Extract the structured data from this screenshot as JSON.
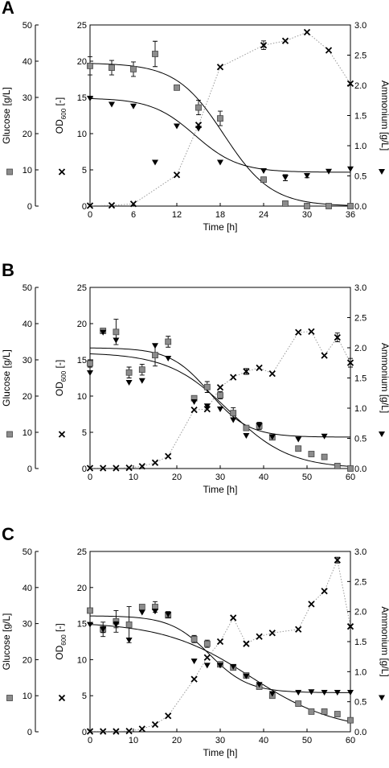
{
  "colors": {
    "glucose_fill": "#8c8c8c",
    "line": "#000000",
    "od_dotted": "#9a9a9a"
  },
  "icons": {
    "glucose": "square-marker-icon",
    "od": "cross-marker-icon",
    "ammonium": "triangle-down-marker-icon"
  },
  "axis_text": {
    "glucose": "Glucose [g/L]",
    "od_main": "OD",
    "od_sub": "600",
    "od_unit": " [-]",
    "ammonium": "Ammonium [g/L]",
    "time": "Time [h]"
  },
  "chart_data": [
    {
      "panel": "A",
      "type": "scatter",
      "xlabel": "Time [h]",
      "xlim": [
        0,
        36
      ],
      "xticks": [
        0,
        6,
        12,
        18,
        24,
        30,
        36
      ],
      "glucose_axis": {
        "label": "Glucose [g/L]",
        "lim": [
          0,
          50
        ],
        "ticks": [
          0,
          10,
          20,
          30,
          40,
          50
        ]
      },
      "od_axis": {
        "label": "OD600 [-]",
        "lim": [
          0,
          25
        ],
        "ticks": [
          0,
          5,
          10,
          15,
          20,
          25
        ]
      },
      "ammonium_axis": {
        "label": "Ammonium [g/L]",
        "lim": [
          0,
          3.0
        ],
        "ticks": [
          "0.0",
          "0.5",
          "1.0",
          "1.5",
          "2.0",
          "2.5",
          "3.0"
        ]
      },
      "series": [
        {
          "name": "Glucose [g/L]",
          "marker": "square",
          "axis": "glucose",
          "x": [
            0,
            3,
            6,
            9,
            12,
            15,
            18,
            24,
            27,
            30,
            33,
            36
          ],
          "y": [
            38.7,
            38.2,
            37.8,
            42.0,
            32.7,
            27.2,
            24.2,
            7.3,
            0.7,
            0.0,
            0.0,
            0.0
          ],
          "err": [
            2.5,
            2.0,
            2.0,
            3.5,
            0,
            2.0,
            2.0,
            0,
            0,
            0,
            0,
            0
          ]
        },
        {
          "name": "OD600 [-]",
          "marker": "cross",
          "axis": "od",
          "connected": true,
          "x": [
            0,
            3,
            6,
            12,
            15,
            18,
            24,
            27,
            30,
            33,
            36
          ],
          "y": [
            0.05,
            0.1,
            0.3,
            4.3,
            11.2,
            19.2,
            22.2,
            22.8,
            24.0,
            21.5,
            16.9
          ],
          "err": [
            0,
            0,
            0,
            0,
            0,
            0,
            0.6,
            0,
            0,
            0,
            0
          ]
        },
        {
          "name": "Ammonium [g/L]",
          "marker": "triangle-down",
          "axis": "ammonium",
          "x": [
            0,
            3,
            6,
            9,
            12,
            15,
            18,
            24,
            27,
            30,
            33,
            36
          ],
          "y": [
            1.78,
            1.68,
            1.65,
            0.72,
            1.32,
            1.28,
            0.72,
            0.58,
            0.47,
            0.5,
            0.57,
            0.61
          ],
          "err": [
            0,
            0,
            0,
            0,
            0,
            0,
            0,
            0,
            0.05,
            0.03,
            0,
            0
          ]
        }
      ],
      "fits": [
        {
          "axis": "glucose",
          "top": 39.5,
          "bottom": 0,
          "mid": 18.5,
          "slope": 3.3
        },
        {
          "axis": "ammonium",
          "top": 1.79,
          "bottom": 0.56,
          "mid": 14.5,
          "slope": 3.0
        }
      ]
    },
    {
      "panel": "B",
      "type": "scatter",
      "xlabel": "Time [h]",
      "xlim": [
        0,
        60
      ],
      "xticks": [
        0,
        10,
        20,
        30,
        40,
        50,
        60
      ],
      "glucose_axis": {
        "label": "Glucose [g/L]",
        "lim": [
          0,
          50
        ],
        "ticks": [
          0,
          10,
          20,
          30,
          40,
          50
        ]
      },
      "od_axis": {
        "label": "OD600 [-]",
        "lim": [
          0,
          25
        ],
        "ticks": [
          0,
          5,
          10,
          15,
          20,
          25
        ]
      },
      "ammonium_axis": {
        "label": "Ammonium [g/L]",
        "lim": [
          0,
          3.0
        ],
        "ticks": [
          "0.0",
          "0.5",
          "1.0",
          "1.5",
          "2.0",
          "2.5",
          "3.0"
        ]
      },
      "series": [
        {
          "name": "Glucose [g/L]",
          "marker": "square",
          "axis": "glucose",
          "x": [
            0,
            3,
            6,
            9,
            12,
            15,
            18,
            24,
            27,
            30,
            33,
            36,
            39,
            42,
            48,
            51,
            54,
            57,
            60
          ],
          "y": [
            29.0,
            38.0,
            37.7,
            26.5,
            27.3,
            31.3,
            35.0,
            19.4,
            22.5,
            20.2,
            15.3,
            11.2,
            11.8,
            8.6,
            5.5,
            4.0,
            3.2,
            0.7,
            0.0
          ],
          "err": [
            1.0,
            0,
            3.5,
            1.5,
            1.5,
            3.0,
            1.5,
            0,
            1.5,
            1.0,
            1.5,
            0,
            1.0,
            0,
            0,
            0,
            0,
            0,
            0
          ]
        },
        {
          "name": "OD600 [-]",
          "marker": "cross",
          "axis": "od",
          "connected": true,
          "x": [
            0,
            3,
            6,
            9,
            12,
            15,
            18,
            24,
            27,
            30,
            33,
            36,
            39,
            42,
            48,
            51,
            54,
            57,
            60
          ],
          "y": [
            0.05,
            0.05,
            0.05,
            0.1,
            0.3,
            0.8,
            1.7,
            8.1,
            8.2,
            11.2,
            12.6,
            13.4,
            13.9,
            13.1,
            18.8,
            18.9,
            15.6,
            18.1,
            14.6
          ],
          "err": [
            0,
            0,
            0,
            0,
            0,
            0,
            0,
            0,
            0,
            0,
            0,
            0.4,
            0,
            0,
            0,
            0,
            0,
            0.6,
            0.6
          ]
        },
        {
          "name": "Ammonium [g/L]",
          "marker": "triangle-down",
          "axis": "ammonium",
          "x": [
            0,
            3,
            6,
            9,
            12,
            15,
            18,
            24,
            27,
            30,
            33,
            36,
            39,
            42,
            48,
            54
          ],
          "y": [
            1.58,
            2.25,
            2.12,
            1.42,
            1.45,
            2.03,
            1.82,
            1.1,
            1.03,
            0.98,
            0.8,
            0.54,
            0.71,
            0.52,
            0.48,
            0.53
          ],
          "err": [
            0,
            0,
            0,
            0,
            0,
            0,
            0,
            0,
            0,
            0,
            0,
            0,
            0,
            0,
            0,
            0
          ]
        }
      ],
      "fits": [
        {
          "axis": "glucose",
          "top": 32.0,
          "bottom": 0,
          "mid": 32.0,
          "slope": 7.0
        },
        {
          "axis": "ammonium",
          "top": 2.0,
          "bottom": 0.52,
          "mid": 27.5,
          "slope": 4.5
        }
      ]
    },
    {
      "panel": "C",
      "type": "scatter",
      "xlabel": "Time [h]",
      "xlim": [
        0,
        60
      ],
      "xticks": [
        0,
        10,
        20,
        30,
        40,
        50,
        60
      ],
      "glucose_axis": {
        "label": "Glucose [g/L]",
        "lim": [
          0,
          50
        ],
        "ticks": [
          0,
          10,
          20,
          30,
          40,
          50
        ]
      },
      "od_axis": {
        "label": "OD600 [-]",
        "lim": [
          0,
          25
        ],
        "ticks": [
          0,
          5,
          10,
          15,
          20,
          25
        ]
      },
      "ammonium_axis": {
        "label": "Ammonium [g/L]",
        "lim": [
          0,
          3.0
        ],
        "ticks": [
          "0.0",
          "0.5",
          "1.0",
          "1.5",
          "2.0",
          "2.5",
          "3.0"
        ]
      },
      "series": [
        {
          "name": "Glucose [g/L]",
          "marker": "square",
          "axis": "glucose",
          "x": [
            0,
            3,
            6,
            9,
            12,
            15,
            18,
            24,
            27,
            30,
            33,
            36,
            39,
            42,
            48,
            51,
            54,
            57,
            60
          ],
          "y": [
            33.6,
            28.4,
            30.6,
            29.7,
            34.6,
            34.6,
            32.3,
            25.7,
            24.4,
            18.7,
            17.8,
            15.6,
            12.5,
            10.0,
            7.8,
            5.6,
            5.6,
            4.9,
            3.2
          ],
          "err": [
            0,
            2.0,
            3.0,
            5.0,
            0,
            1.5,
            0,
            1.0,
            1.0,
            0,
            0,
            0,
            0,
            0,
            0,
            0,
            0,
            0,
            0
          ]
        },
        {
          "name": "OD600 [-]",
          "marker": "cross",
          "axis": "od",
          "connected": true,
          "x": [
            0,
            3,
            6,
            9,
            12,
            15,
            18,
            24,
            27,
            30,
            33,
            36,
            39,
            42,
            48,
            51,
            54,
            57,
            60
          ],
          "y": [
            0.05,
            0.05,
            0.05,
            0.1,
            0.4,
            1.0,
            2.2,
            7.3,
            10.3,
            12.5,
            15.8,
            12.2,
            13.2,
            13.7,
            14.2,
            17.7,
            19.5,
            23.8,
            14.6
          ],
          "err": [
            0,
            0,
            0,
            0,
            0,
            0,
            0,
            0,
            0,
            0,
            0,
            0,
            0,
            0,
            0,
            0,
            0,
            0.4,
            0
          ]
        },
        {
          "name": "Ammonium [g/L]",
          "marker": "triangle-down",
          "axis": "ammonium",
          "x": [
            0,
            3,
            6,
            9,
            12,
            15,
            18,
            24,
            27,
            30,
            33,
            36,
            39,
            42,
            48,
            51,
            54,
            57,
            60
          ],
          "y": [
            1.78,
            1.7,
            1.78,
            1.52,
            1.98,
            2.0,
            1.95,
            1.17,
            1.1,
            1.1,
            1.08,
            0.92,
            0.78,
            0.63,
            0.65,
            0.66,
            0.65,
            0.65,
            0.65
          ],
          "err": [
            0,
            0.05,
            0.05,
            0,
            0,
            0,
            0.05,
            0,
            0,
            0,
            0,
            0,
            0,
            0,
            0,
            0,
            0,
            0,
            0
          ]
        }
      ],
      "fits": [
        {
          "axis": "glucose",
          "top": 30.5,
          "bottom": 0,
          "mid": 37.0,
          "slope": 10.0
        },
        {
          "axis": "ammonium",
          "top": 1.93,
          "bottom": 0.65,
          "mid": 27.5,
          "slope": 4.5
        }
      ]
    }
  ]
}
